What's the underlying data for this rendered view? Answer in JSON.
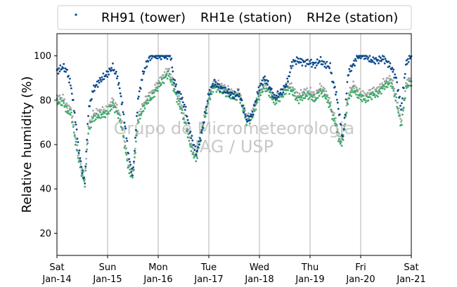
{
  "chart_data": {
    "type": "scatter",
    "ylabel": "Relative humidity (%)",
    "ylim": [
      10,
      110
    ],
    "yticks": [
      20,
      40,
      60,
      80,
      100
    ],
    "xlim": [
      0,
      7
    ],
    "x_unit": "days since Sat Jan-14",
    "xticks": [
      {
        "day": "Sat",
        "date": "Jan-14"
      },
      {
        "day": "Sun",
        "date": "Jan-15"
      },
      {
        "day": "Mon",
        "date": "Jan-16"
      },
      {
        "day": "Tue",
        "date": "Jan-17"
      },
      {
        "day": "Wed",
        "date": "Jan-18"
      },
      {
        "day": "Thu",
        "date": "Jan-19"
      },
      {
        "day": "Fri",
        "date": "Jan-20"
      },
      {
        "day": "Sat",
        "date": "Jan-21"
      }
    ],
    "grid": "vertical",
    "legend": "top",
    "watermark": [
      "Grupo de Micrometeorologia",
      "IAG / USP"
    ],
    "series": [
      {
        "name": "RH91 (tower)",
        "color": "#0b4a8c",
        "points": [
          [
            0,
            93
          ],
          [
            0.12,
            95
          ],
          [
            0.2,
            93
          ],
          [
            0.28,
            86
          ],
          [
            0.36,
            72
          ],
          [
            0.43,
            58
          ],
          [
            0.5,
            48
          ],
          [
            0.55,
            43
          ],
          [
            0.62,
            75
          ],
          [
            0.72,
            85
          ],
          [
            0.85,
            89
          ],
          [
            1,
            92
          ],
          [
            1.1,
            95
          ],
          [
            1.2,
            90
          ],
          [
            1.27,
            81
          ],
          [
            1.35,
            68
          ],
          [
            1.42,
            54
          ],
          [
            1.5,
            46
          ],
          [
            1.6,
            80
          ],
          [
            1.7,
            92
          ],
          [
            1.8,
            98
          ],
          [
            1.87,
            100
          ],
          [
            2.25,
            100
          ],
          [
            2.3,
            90
          ],
          [
            2.38,
            84
          ],
          [
            2.45,
            82
          ],
          [
            2.55,
            75
          ],
          [
            2.65,
            64
          ],
          [
            2.75,
            56
          ],
          [
            2.85,
            64
          ],
          [
            3,
            83
          ],
          [
            3.1,
            88
          ],
          [
            3.2,
            86
          ],
          [
            3.35,
            84
          ],
          [
            3.5,
            82
          ],
          [
            3.6,
            83
          ],
          [
            3.75,
            71
          ],
          [
            3.85,
            73
          ],
          [
            4,
            86
          ],
          [
            4.1,
            90
          ],
          [
            4.2,
            86
          ],
          [
            4.3,
            81
          ],
          [
            4.45,
            84
          ],
          [
            4.55,
            88
          ],
          [
            4.65,
            97
          ],
          [
            4.75,
            98
          ],
          [
            4.9,
            97
          ],
          [
            5,
            97
          ],
          [
            5.1,
            96
          ],
          [
            5.2,
            98
          ],
          [
            5.3,
            96
          ],
          [
            5.4,
            95
          ],
          [
            5.45,
            88
          ],
          [
            5.5,
            85
          ],
          [
            5.55,
            78
          ],
          [
            5.6,
            70
          ],
          [
            5.65,
            62
          ],
          [
            5.75,
            92
          ],
          [
            5.85,
            96
          ],
          [
            5.95,
            100
          ],
          [
            6.1,
            100
          ],
          [
            6.2,
            98
          ],
          [
            6.35,
            98
          ],
          [
            6.45,
            99
          ],
          [
            6.6,
            95
          ],
          [
            6.7,
            90
          ],
          [
            6.8,
            76
          ],
          [
            6.9,
            97
          ],
          [
            7,
            100
          ]
        ]
      },
      {
        "name": "RH1e (station)",
        "color": "#3daa6a",
        "points": [
          [
            0,
            79
          ],
          [
            0.12,
            79
          ],
          [
            0.2,
            75
          ],
          [
            0.28,
            74
          ],
          [
            0.36,
            62
          ],
          [
            0.43,
            53
          ],
          [
            0.5,
            46
          ],
          [
            0.55,
            42
          ],
          [
            0.62,
            66
          ],
          [
            0.72,
            72
          ],
          [
            0.85,
            73
          ],
          [
            1,
            74
          ],
          [
            1.1,
            78
          ],
          [
            1.2,
            74
          ],
          [
            1.27,
            69
          ],
          [
            1.35,
            58
          ],
          [
            1.42,
            48
          ],
          [
            1.5,
            45
          ],
          [
            1.6,
            70
          ],
          [
            1.7,
            76
          ],
          [
            1.8,
            80
          ],
          [
            1.87,
            81
          ],
          [
            2,
            86
          ],
          [
            2.1,
            89
          ],
          [
            2.2,
            92
          ],
          [
            2.3,
            86
          ],
          [
            2.38,
            80
          ],
          [
            2.45,
            76
          ],
          [
            2.55,
            68
          ],
          [
            2.65,
            58
          ],
          [
            2.75,
            53
          ],
          [
            2.85,
            64
          ],
          [
            3,
            80
          ],
          [
            3.1,
            86
          ],
          [
            3.2,
            85
          ],
          [
            3.35,
            83
          ],
          [
            3.5,
            81
          ],
          [
            3.6,
            82
          ],
          [
            3.75,
            70
          ],
          [
            3.85,
            72
          ],
          [
            4,
            82
          ],
          [
            4.1,
            86
          ],
          [
            4.2,
            83
          ],
          [
            4.3,
            79
          ],
          [
            4.45,
            82
          ],
          [
            4.55,
            85
          ],
          [
            4.65,
            84
          ],
          [
            4.75,
            80
          ],
          [
            4.9,
            82
          ],
          [
            5,
            82
          ],
          [
            5.1,
            80
          ],
          [
            5.2,
            84
          ],
          [
            5.3,
            82
          ],
          [
            5.4,
            77
          ],
          [
            5.45,
            72
          ],
          [
            5.5,
            70
          ],
          [
            5.55,
            64
          ],
          [
            5.6,
            60
          ],
          [
            5.65,
            62
          ],
          [
            5.75,
            80
          ],
          [
            5.85,
            85
          ],
          [
            5.95,
            82
          ],
          [
            6.1,
            80
          ],
          [
            6.2,
            82
          ],
          [
            6.35,
            83
          ],
          [
            6.45,
            86
          ],
          [
            6.6,
            88
          ],
          [
            6.7,
            80
          ],
          [
            6.8,
            68
          ],
          [
            6.9,
            86
          ],
          [
            7,
            88
          ]
        ]
      },
      {
        "name": "RH2e (station)",
        "color": "#a6a6a6",
        "points": [
          [
            0,
            81
          ],
          [
            0.12,
            81
          ],
          [
            0.2,
            77
          ],
          [
            0.28,
            76
          ],
          [
            0.36,
            64
          ],
          [
            0.43,
            55
          ],
          [
            0.5,
            48
          ],
          [
            0.55,
            44
          ],
          [
            0.62,
            68
          ],
          [
            0.72,
            74
          ],
          [
            0.85,
            75
          ],
          [
            1,
            76
          ],
          [
            1.1,
            80
          ],
          [
            1.2,
            76
          ],
          [
            1.27,
            71
          ],
          [
            1.35,
            60
          ],
          [
            1.42,
            50
          ],
          [
            1.5,
            47
          ],
          [
            1.6,
            72
          ],
          [
            1.7,
            78
          ],
          [
            1.8,
            82
          ],
          [
            1.87,
            83
          ],
          [
            2,
            88
          ],
          [
            2.1,
            91
          ],
          [
            2.2,
            94
          ],
          [
            2.3,
            88
          ],
          [
            2.38,
            82
          ],
          [
            2.45,
            78
          ],
          [
            2.55,
            70
          ],
          [
            2.65,
            60
          ],
          [
            2.75,
            55
          ],
          [
            2.85,
            66
          ],
          [
            3,
            82
          ],
          [
            3.1,
            88
          ],
          [
            3.2,
            87
          ],
          [
            3.35,
            85
          ],
          [
            3.5,
            83
          ],
          [
            3.6,
            84
          ],
          [
            3.75,
            72
          ],
          [
            3.85,
            74
          ],
          [
            4,
            84
          ],
          [
            4.1,
            88
          ],
          [
            4.2,
            85
          ],
          [
            4.3,
            81
          ],
          [
            4.45,
            84
          ],
          [
            4.55,
            87
          ],
          [
            4.65,
            86
          ],
          [
            4.75,
            82
          ],
          [
            4.9,
            84
          ],
          [
            5,
            84
          ],
          [
            5.1,
            82
          ],
          [
            5.2,
            86
          ],
          [
            5.3,
            84
          ],
          [
            5.4,
            79
          ],
          [
            5.45,
            74
          ],
          [
            5.5,
            72
          ],
          [
            5.55,
            66
          ],
          [
            5.6,
            62
          ],
          [
            5.65,
            64
          ],
          [
            5.75,
            82
          ],
          [
            5.85,
            87
          ],
          [
            5.95,
            84
          ],
          [
            6.1,
            82
          ],
          [
            6.2,
            84
          ],
          [
            6.35,
            85
          ],
          [
            6.45,
            88
          ],
          [
            6.6,
            90
          ],
          [
            6.7,
            82
          ],
          [
            6.8,
            70
          ],
          [
            6.9,
            88
          ],
          [
            7,
            90
          ]
        ]
      }
    ]
  }
}
